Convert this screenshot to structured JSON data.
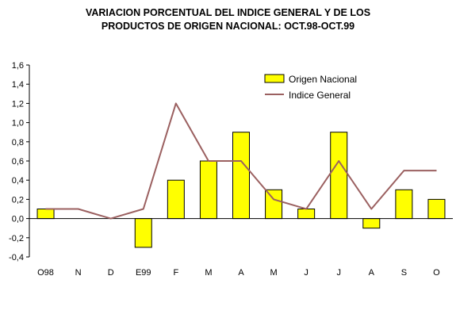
{
  "colors": {
    "bar": "#ffff00",
    "line": "#9b6060",
    "axis": "#000000"
  },
  "chart_data": {
    "type": "bar",
    "title_line1": "VARIACION PORCENTUAL DEL INDICE GENERAL Y DE LOS",
    "title_line2": "PRODUCTOS DE ORIGEN NACIONAL: OCT.98-OCT.99",
    "categories": [
      "O98",
      "N",
      "D",
      "E99",
      "F",
      "M",
      "A",
      "M",
      "J",
      "J",
      "A",
      "S",
      "O"
    ],
    "series": [
      {
        "name": "Origen Nacional",
        "type": "bar",
        "values": [
          0.1,
          0.0,
          0.0,
          -0.3,
          0.4,
          0.6,
          0.9,
          0.3,
          0.1,
          0.9,
          -0.1,
          0.3,
          0.2
        ]
      },
      {
        "name": "Indice General",
        "type": "line",
        "values": [
          0.1,
          0.1,
          0.0,
          0.1,
          1.2,
          0.6,
          0.6,
          0.2,
          0.1,
          0.6,
          0.1,
          0.5,
          0.5
        ]
      }
    ],
    "ylim": [
      -0.4,
      1.6
    ],
    "yticks": [
      -0.4,
      -0.2,
      0.0,
      0.2,
      0.4,
      0.6,
      0.8,
      1.0,
      1.2,
      1.4,
      1.6
    ],
    "ytick_labels": [
      "-0,4",
      "-0,2",
      "0,0",
      "0,2",
      "0,4",
      "0,6",
      "0,8",
      "1,0",
      "1,2",
      "1,4",
      "1,6"
    ],
    "xlabel": "",
    "ylabel": "",
    "grid": false,
    "legend": "top-right"
  }
}
